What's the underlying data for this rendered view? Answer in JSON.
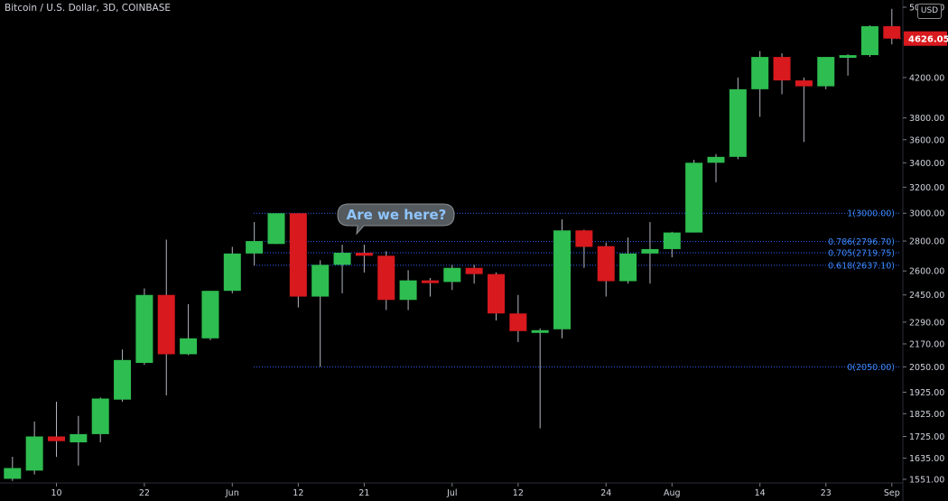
{
  "header": {
    "title": "Bitcoin / U.S. Dollar, 3D, COINBASE",
    "currency_button": "USD"
  },
  "colors": {
    "background": "#000000",
    "up": "#2ebd50",
    "down": "#d8191e",
    "wick": "#b2b5be",
    "axis_text": "#d1d4dc",
    "fib_line": "#2962ff",
    "fib_text": "#3d8bff",
    "price_tag": "#d8191e",
    "annotation_bg": "#555a5e",
    "annotation_text": "#8ec5ff"
  },
  "annotation": {
    "text": "Are we here?"
  },
  "last_price": "4626.05",
  "chart_data": {
    "type": "candlestick",
    "title": "Bitcoin / U.S. Dollar, 3D, COINBASE",
    "y_scale": "log",
    "ylim": [
      1551,
      5000
    ],
    "y_ticks": [
      "5000.00",
      "4200.00",
      "3800.00",
      "3600.00",
      "3400.00",
      "3200.00",
      "3000.00",
      "2800.00",
      "2600.00",
      "2450.00",
      "2290.00",
      "2170.00",
      "2050.00",
      "1925.00",
      "1825.00",
      "1725.00",
      "1635.00",
      "1551.00"
    ],
    "x_ticks": [
      "10",
      "22",
      "Jun",
      "12",
      "21",
      "Jul",
      "12",
      "24",
      "Aug",
      "14",
      "23",
      "Sep"
    ],
    "candles": [
      {
        "o": 1553,
        "h": 1640,
        "l": 1545,
        "c": 1595
      },
      {
        "o": 1585,
        "h": 1790,
        "l": 1570,
        "c": 1725
      },
      {
        "o": 1725,
        "h": 1880,
        "l": 1640,
        "c": 1705
      },
      {
        "o": 1700,
        "h": 1815,
        "l": 1605,
        "c": 1735
      },
      {
        "o": 1735,
        "h": 1900,
        "l": 1700,
        "c": 1895
      },
      {
        "o": 1890,
        "h": 2140,
        "l": 1880,
        "c": 2085
      },
      {
        "o": 2070,
        "h": 2490,
        "l": 2060,
        "c": 2450
      },
      {
        "o": 2450,
        "h": 2810,
        "l": 1910,
        "c": 2115
      },
      {
        "o": 2115,
        "h": 2395,
        "l": 2110,
        "c": 2200
      },
      {
        "o": 2200,
        "h": 2475,
        "l": 2190,
        "c": 2475
      },
      {
        "o": 2475,
        "h": 2760,
        "l": 2460,
        "c": 2715
      },
      {
        "o": 2715,
        "h": 2935,
        "l": 2635,
        "c": 2800
      },
      {
        "o": 2780,
        "h": 3000,
        "l": 2780,
        "c": 3000
      },
      {
        "o": 3000,
        "h": 3000,
        "l": 2375,
        "c": 2440
      },
      {
        "o": 2440,
        "h": 2670,
        "l": 2050,
        "c": 2640
      },
      {
        "o": 2640,
        "h": 2775,
        "l": 2460,
        "c": 2720
      },
      {
        "o": 2720,
        "h": 2775,
        "l": 2590,
        "c": 2700
      },
      {
        "o": 2700,
        "h": 2730,
        "l": 2360,
        "c": 2420
      },
      {
        "o": 2420,
        "h": 2605,
        "l": 2360,
        "c": 2540
      },
      {
        "o": 2540,
        "h": 2555,
        "l": 2440,
        "c": 2530
      },
      {
        "o": 2530,
        "h": 2640,
        "l": 2480,
        "c": 2620
      },
      {
        "o": 2620,
        "h": 2640,
        "l": 2520,
        "c": 2580
      },
      {
        "o": 2580,
        "h": 2590,
        "l": 2300,
        "c": 2340
      },
      {
        "o": 2340,
        "h": 2450,
        "l": 2180,
        "c": 2240
      },
      {
        "o": 2230,
        "h": 2255,
        "l": 1760,
        "c": 2245
      },
      {
        "o": 2250,
        "h": 2955,
        "l": 2200,
        "c": 2875
      },
      {
        "o": 2875,
        "h": 2880,
        "l": 2620,
        "c": 2760
      },
      {
        "o": 2765,
        "h": 2790,
        "l": 2440,
        "c": 2535
      },
      {
        "o": 2535,
        "h": 2825,
        "l": 2520,
        "c": 2715
      },
      {
        "o": 2715,
        "h": 2935,
        "l": 2520,
        "c": 2745
      },
      {
        "o": 2745,
        "h": 2865,
        "l": 2690,
        "c": 2860
      },
      {
        "o": 2860,
        "h": 3425,
        "l": 2860,
        "c": 3400
      },
      {
        "o": 3400,
        "h": 3475,
        "l": 3240,
        "c": 3450
      },
      {
        "o": 3450,
        "h": 4200,
        "l": 3430,
        "c": 4080
      },
      {
        "o": 4080,
        "h": 4485,
        "l": 3810,
        "c": 4420
      },
      {
        "o": 4420,
        "h": 4460,
        "l": 4030,
        "c": 4170
      },
      {
        "o": 4170,
        "h": 4200,
        "l": 3580,
        "c": 4110
      },
      {
        "o": 4110,
        "h": 4420,
        "l": 4080,
        "c": 4420
      },
      {
        "o": 4420,
        "h": 4450,
        "l": 4220,
        "c": 4440
      },
      {
        "o": 4440,
        "h": 4780,
        "l": 4420,
        "c": 4770
      },
      {
        "o": 4770,
        "h": 4980,
        "l": 4560,
        "c": 4626.05
      }
    ],
    "fibonacci": [
      {
        "label": "1(3000.00)",
        "value": 3000.0
      },
      {
        "label": "0.786(2796.70)",
        "value": 2796.7
      },
      {
        "label": "0.705(2719.75)",
        "value": 2719.75
      },
      {
        "label": "0.618(2637.10)",
        "value": 2637.1
      },
      {
        "label": "0(2050.00)",
        "value": 2050.0
      }
    ]
  }
}
